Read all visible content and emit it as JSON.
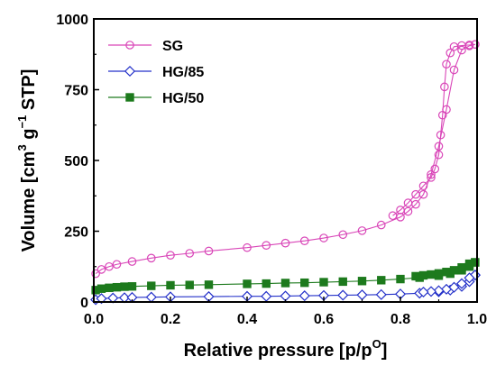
{
  "chart_data": {
    "type": "line",
    "xlabel": "Relative pressure [p/p",
    "xlabel_sup": "O",
    "xlabel_end": "]",
    "ylabel_parts": [
      "Volume [cm",
      "3",
      " g",
      "−1",
      " STP]"
    ],
    "xlim": [
      0.0,
      1.0
    ],
    "ylim": [
      0,
      1000
    ],
    "x_ticks": [
      "0.0",
      "0.2",
      "0.4",
      "0.6",
      "0.8",
      "1.0"
    ],
    "y_ticks": [
      "0",
      "250",
      "500",
      "750",
      "1000"
    ],
    "grid": false,
    "legend_position": "top-left",
    "series": [
      {
        "name": "SG",
        "color": "#d946b8",
        "marker": "open-circle",
        "adsorption": {
          "x": [
            0.005,
            0.02,
            0.04,
            0.06,
            0.1,
            0.15,
            0.2,
            0.25,
            0.3,
            0.4,
            0.45,
            0.5,
            0.55,
            0.6,
            0.65,
            0.7,
            0.75,
            0.8,
            0.82,
            0.84,
            0.86,
            0.88,
            0.9,
            0.92,
            0.94,
            0.96,
            0.98,
            0.995
          ],
          "y": [
            100,
            115,
            125,
            133,
            143,
            155,
            165,
            172,
            180,
            192,
            200,
            208,
            216,
            226,
            238,
            252,
            272,
            300,
            320,
            345,
            380,
            450,
            550,
            680,
            820,
            890,
            905,
            910
          ]
        },
        "desorption": {
          "x": [
            0.995,
            0.98,
            0.96,
            0.94,
            0.93,
            0.92,
            0.915,
            0.91,
            0.905,
            0.9,
            0.89,
            0.88,
            0.86,
            0.84,
            0.82,
            0.8,
            0.78
          ],
          "y": [
            910,
            908,
            906,
            902,
            880,
            840,
            760,
            660,
            590,
            520,
            470,
            440,
            410,
            380,
            350,
            325,
            305
          ]
        }
      },
      {
        "name": "HG/85",
        "color": "#2431c9",
        "marker": "open-diamond",
        "adsorption": {
          "x": [
            0.005,
            0.02,
            0.05,
            0.08,
            0.1,
            0.15,
            0.2,
            0.3,
            0.4,
            0.45,
            0.5,
            0.55,
            0.6,
            0.65,
            0.7,
            0.75,
            0.8,
            0.85,
            0.9,
            0.93,
            0.96,
            0.98,
            0.995
          ],
          "y": [
            8,
            12,
            14,
            15,
            16,
            17,
            18,
            19,
            20,
            20,
            21,
            22,
            23,
            24,
            25,
            26,
            28,
            31,
            36,
            42,
            55,
            72,
            95
          ]
        },
        "desorption": {
          "x": [
            0.995,
            0.98,
            0.96,
            0.94,
            0.92,
            0.9,
            0.88,
            0.86
          ],
          "y": [
            95,
            85,
            65,
            52,
            45,
            40,
            37,
            35
          ]
        }
      },
      {
        "name": "HG/50",
        "color": "#1d7a1d",
        "marker": "filled-square",
        "adsorption": {
          "x": [
            0.005,
            0.02,
            0.04,
            0.06,
            0.08,
            0.1,
            0.15,
            0.2,
            0.25,
            0.3,
            0.4,
            0.45,
            0.5,
            0.55,
            0.6,
            0.65,
            0.7,
            0.75,
            0.8,
            0.85,
            0.9,
            0.93,
            0.96,
            0.98,
            0.995
          ],
          "y": [
            42,
            47,
            50,
            52,
            54,
            55,
            57,
            59,
            60,
            61,
            64,
            65,
            67,
            68,
            70,
            72,
            74,
            77,
            81,
            86,
            93,
            100,
            112,
            125,
            140
          ]
        },
        "desorption": {
          "x": [
            0.995,
            0.98,
            0.96,
            0.94,
            0.92,
            0.9,
            0.88,
            0.86,
            0.84
          ],
          "y": [
            140,
            135,
            122,
            112,
            106,
            101,
            97,
            94,
            91
          ]
        }
      }
    ]
  }
}
